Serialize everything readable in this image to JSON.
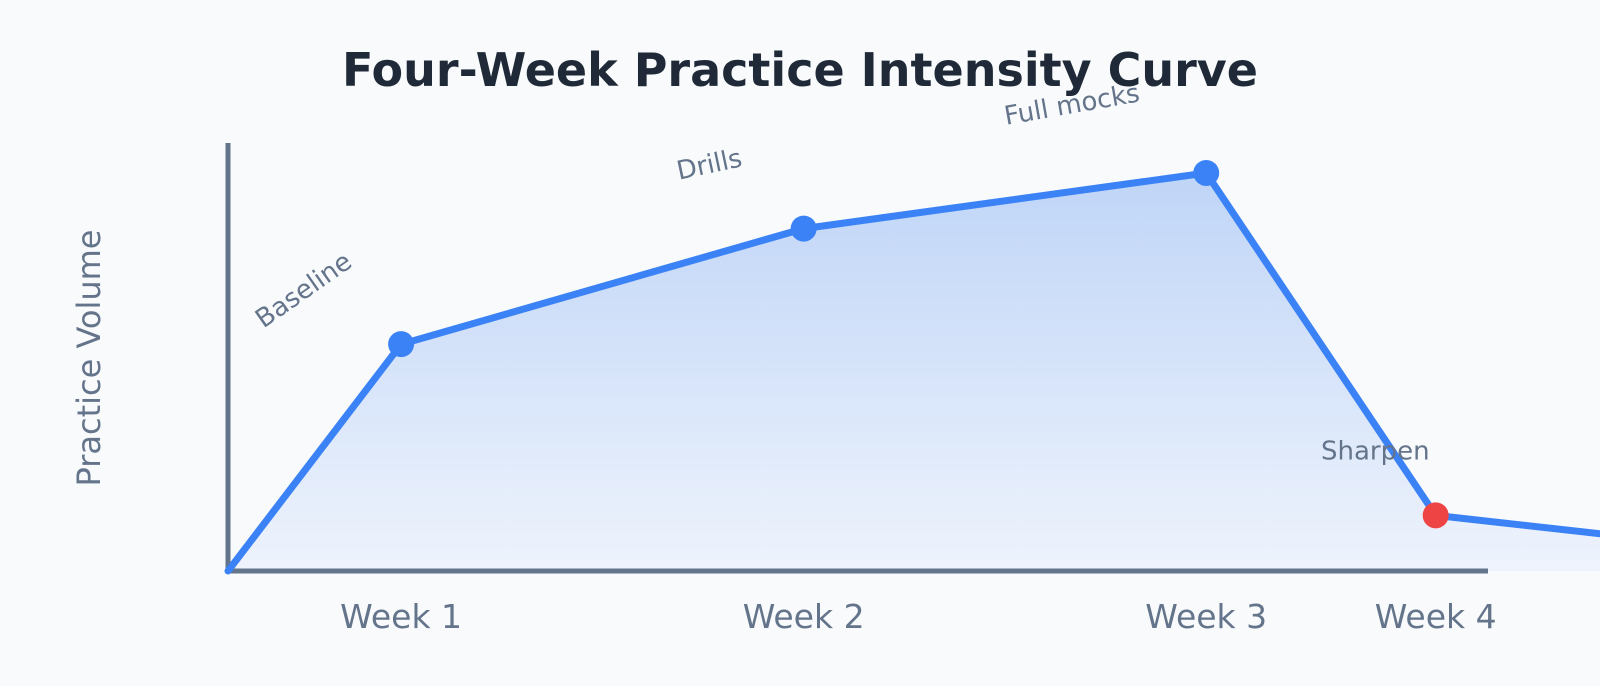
{
  "chart_data": {
    "type": "area",
    "title": "Four-Week Practice Intensity Curve",
    "xlabel": "",
    "ylabel": "Practice Volume",
    "categories": [
      "Week 1",
      "Week 2",
      "Week 3",
      "Week 4"
    ],
    "x": [
      0,
      0.43,
      1.43,
      2.43,
      3.0,
      3.57
    ],
    "y": [
      0,
      53,
      80,
      93,
      13,
      7
    ],
    "markers": [
      {
        "x": 0.43,
        "y": 53,
        "color": "#3b82f6"
      },
      {
        "x": 1.43,
        "y": 80,
        "color": "#3b82f6"
      },
      {
        "x": 2.43,
        "y": 93,
        "color": "#3b82f6"
      },
      {
        "x": 3.0,
        "y": 13,
        "color": "#ef4444"
      }
    ],
    "annotations": [
      {
        "text": "Baseline",
        "x": 0.2,
        "y": 64,
        "rotation": -35
      },
      {
        "text": "Drills",
        "x": 1.2,
        "y": 93,
        "rotation": -12
      },
      {
        "text": "Full mocks",
        "x": 2.1,
        "y": 107,
        "rotation": -10
      },
      {
        "text": "Sharpen",
        "x": 2.85,
        "y": 26,
        "rotation": 0
      }
    ],
    "xlim": [
      0,
      3.13
    ],
    "ylim": [
      0,
      100
    ],
    "grid": false,
    "legend": "none",
    "colors": {
      "line": "#3b82f6",
      "fill_top": "#bfd5f7",
      "fill_bottom": "#eef3fc",
      "axis": "#64748b",
      "highlight": "#ef4444",
      "title": "#1f2937",
      "text": "#64748b"
    }
  }
}
